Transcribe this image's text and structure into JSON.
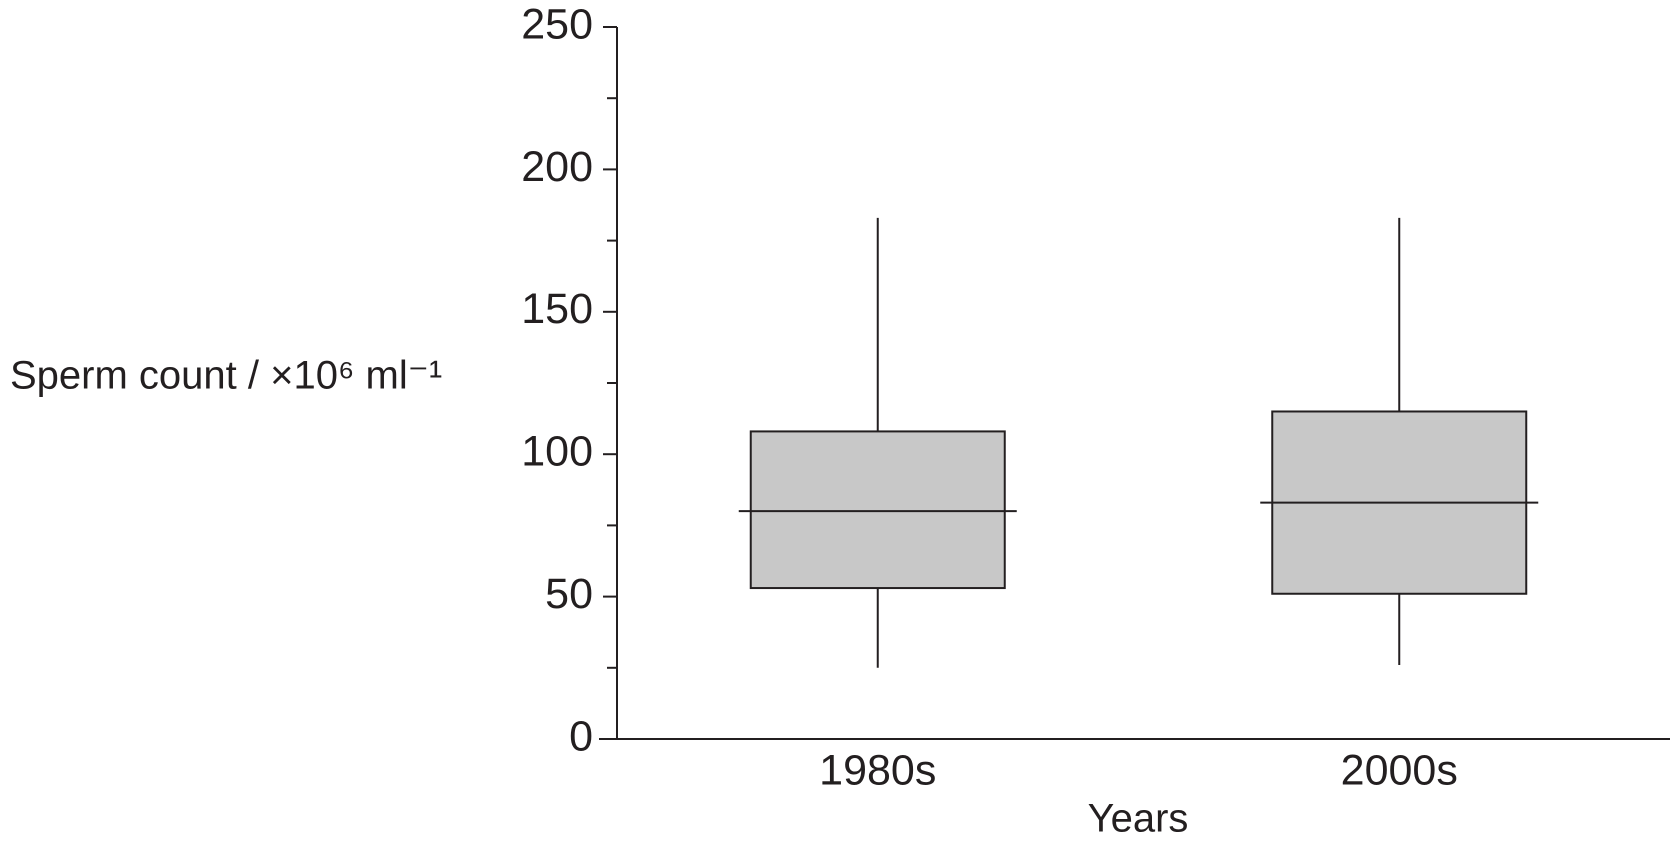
{
  "chart_data": {
    "type": "box",
    "categories": [
      "1980s",
      "2000s"
    ],
    "boxes": [
      {
        "min": 25,
        "q1": 53,
        "median": 80,
        "q3": 108,
        "max": 183
      },
      {
        "min": 26,
        "q1": 51,
        "median": 83,
        "q3": 115,
        "max": 183
      }
    ],
    "color": "#c8c8c8",
    "ylabel": "Sperm count / ×10⁶ ml⁻¹",
    "xlabel": "Years",
    "ylim": [
      0,
      250
    ],
    "yticks": [
      0,
      50,
      100,
      150,
      200,
      250
    ],
    "yminorticks": [
      25,
      75,
      125,
      175,
      225
    ]
  }
}
